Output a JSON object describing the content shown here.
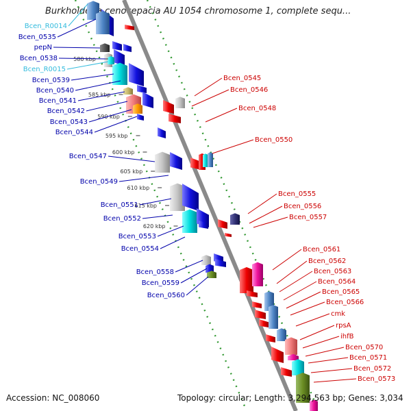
{
  "title": "Burkholderia cenocepacia AU 1054 chromosome 1, complete sequ...",
  "footer": {
    "accession": "Accession: NC_008060",
    "summary": "Topology: circular; Length: 3,294,563 bp; Genes: 3,034"
  },
  "colors": {
    "label_left": "#0000aa",
    "label_left_rna": "#33bbdd",
    "label_right": "#cc0000",
    "backbone": "#8a8a8a",
    "dotted": "#339933"
  },
  "ticks": [
    "580 kbp",
    "585 kbp",
    "590 kbp",
    "595 kbp",
    "600 kbp",
    "605 kbp",
    "610 kbp",
    "615 kbp",
    "620 kbp"
  ],
  "labels_left": [
    {
      "name": "Bcen_R0014",
      "kind": "rna"
    },
    {
      "name": "Bcen_0535",
      "kind": "gene"
    },
    {
      "name": "pepN",
      "kind": "gene"
    },
    {
      "name": "Bcen_0538",
      "kind": "gene"
    },
    {
      "name": "Bcen_R0015",
      "kind": "rna"
    },
    {
      "name": "Bcen_0539",
      "kind": "gene"
    },
    {
      "name": "Bcen_0540",
      "kind": "gene"
    },
    {
      "name": "Bcen_0541",
      "kind": "gene"
    },
    {
      "name": "Bcen_0542",
      "kind": "gene"
    },
    {
      "name": "Bcen_0543",
      "kind": "gene"
    },
    {
      "name": "Bcen_0544",
      "kind": "gene"
    },
    {
      "name": "Bcen_0547",
      "kind": "gene"
    },
    {
      "name": "Bcen_0549",
      "kind": "gene"
    },
    {
      "name": "Bcen_0551",
      "kind": "gene"
    },
    {
      "name": "Bcen_0552",
      "kind": "gene"
    },
    {
      "name": "Bcen_0553",
      "kind": "gene"
    },
    {
      "name": "Bcen_0554",
      "kind": "gene"
    },
    {
      "name": "Bcen_0558",
      "kind": "gene"
    },
    {
      "name": "Bcen_0559",
      "kind": "gene"
    },
    {
      "name": "Bcen_0560",
      "kind": "gene"
    }
  ],
  "labels_right": [
    "Bcen_0545",
    "Bcen_0546",
    "Bcen_0548",
    "Bcen_0550",
    "Bcen_0555",
    "Bcen_0556",
    "Bcen_0557",
    "Bcen_0561",
    "Bcen_0562",
    "Bcen_0563",
    "Bcen_0564",
    "Bcen_0565",
    "Bcen_0566",
    "cmk",
    "rpsA",
    "ihfB",
    "Bcen_0570",
    "Bcen_0571",
    "Bcen_0572",
    "Bcen_0573"
  ]
}
